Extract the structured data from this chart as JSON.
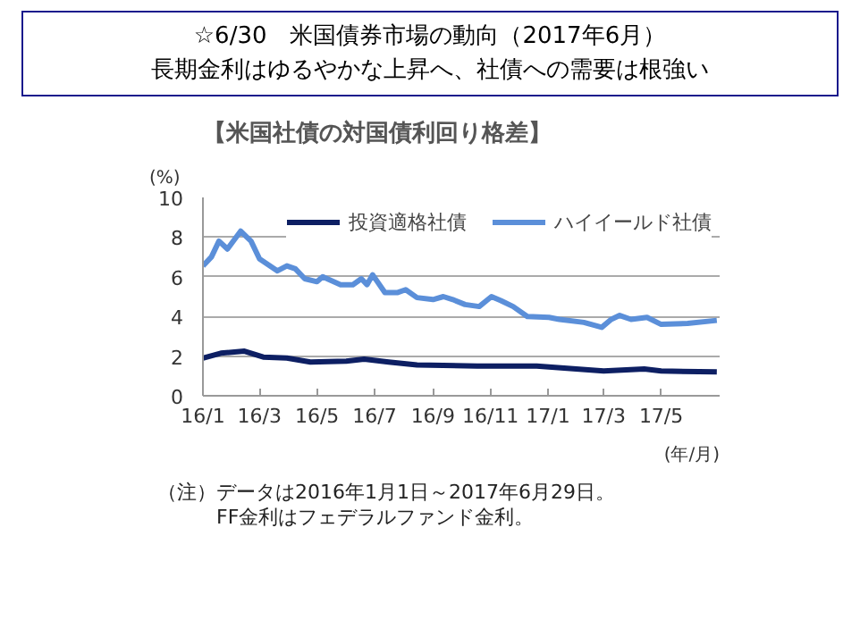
{
  "chart_data": {
    "type": "line",
    "title": "☆6/30　米国債券市場の動向（2017年6月）",
    "subtitle": "長期金利はゆるやかな上昇へ、社債への需要は根強い",
    "ylabel": "(%)",
    "xlabel": "(年/月)",
    "annotations": [
      "【米国社債の対国債利回り格差】",
      "（注）データは2016年1月1日～2017年6月29日。",
      "FF金利はフェデラルファンド金利。"
    ],
    "xlim": [
      "2016-01-01",
      "2017-07-02"
    ],
    "xticks": [
      {
        "value": "2016-01-01",
        "label": "16/1"
      },
      {
        "value": "2016-03-01",
        "label": "16/3"
      },
      {
        "value": "2016-05-01",
        "label": "16/5"
      },
      {
        "value": "2016-07-01",
        "label": "16/7"
      },
      {
        "value": "2016-09-01",
        "label": "16/9"
      },
      {
        "value": "2016-11-01",
        "label": "16/11"
      },
      {
        "value": "2017-01-01",
        "label": "17/1"
      },
      {
        "value": "2017-03-01",
        "label": "17/3"
      },
      {
        "value": "2017-05-01",
        "label": "17/5"
      }
    ],
    "ylim": [
      0,
      10
    ],
    "yticks": [
      0,
      2,
      4,
      6,
      8,
      10
    ],
    "grid": "y",
    "legend": "top right",
    "marker": "none",
    "line_style": "solid",
    "series": [
      {
        "name": "投資適格社債",
        "color": "#0d1f63",
        "x": [
          "2016-01-01",
          "2016-01-20",
          "2016-02-14",
          "2016-03-05",
          "2016-03-30",
          "2016-04-24",
          "2016-06-01",
          "2016-06-20",
          "2016-07-16",
          "2016-08-15",
          "2016-10-18",
          "2016-12-20",
          "2017-03-01",
          "2017-04-13",
          "2017-05-01",
          "2017-06-29"
        ],
        "values": [
          1.9,
          2.15,
          2.25,
          1.95,
          1.9,
          1.7,
          1.75,
          1.85,
          1.7,
          1.55,
          1.5,
          1.5,
          1.25,
          1.35,
          1.25,
          1.2
        ]
      },
      {
        "name": "ハイイールド社債",
        "color": "#5b8fd9",
        "x": [
          "2016-01-01",
          "2016-01-10",
          "2016-01-18",
          "2016-01-27",
          "2016-02-10",
          "2016-02-21",
          "2016-03-01",
          "2016-03-20",
          "2016-03-30",
          "2016-04-08",
          "2016-04-18",
          "2016-05-01",
          "2016-05-07",
          "2016-05-26",
          "2016-06-08",
          "2016-06-17",
          "2016-06-23",
          "2016-06-29",
          "2016-07-12",
          "2016-07-25",
          "2016-08-03",
          "2016-08-15",
          "2016-09-01",
          "2016-09-12",
          "2016-09-22",
          "2016-10-05",
          "2016-10-20",
          "2016-11-02",
          "2016-11-12",
          "2016-11-25",
          "2016-12-10",
          "2017-01-02",
          "2017-01-13",
          "2017-02-08",
          "2017-02-27",
          "2017-03-09",
          "2017-03-18",
          "2017-03-30",
          "2017-04-16",
          "2017-05-01",
          "2017-05-29",
          "2017-06-29"
        ],
        "values": [
          6.55,
          7.0,
          7.8,
          7.4,
          8.3,
          7.8,
          6.9,
          6.3,
          6.55,
          6.4,
          5.9,
          5.75,
          6.0,
          5.6,
          5.6,
          5.9,
          5.6,
          6.1,
          5.2,
          5.2,
          5.35,
          4.95,
          4.85,
          5.0,
          4.85,
          4.6,
          4.5,
          5.0,
          4.8,
          4.5,
          4.0,
          3.95,
          3.85,
          3.7,
          3.45,
          3.85,
          4.05,
          3.85,
          3.95,
          3.6,
          3.65,
          3.8
        ]
      }
    ]
  }
}
